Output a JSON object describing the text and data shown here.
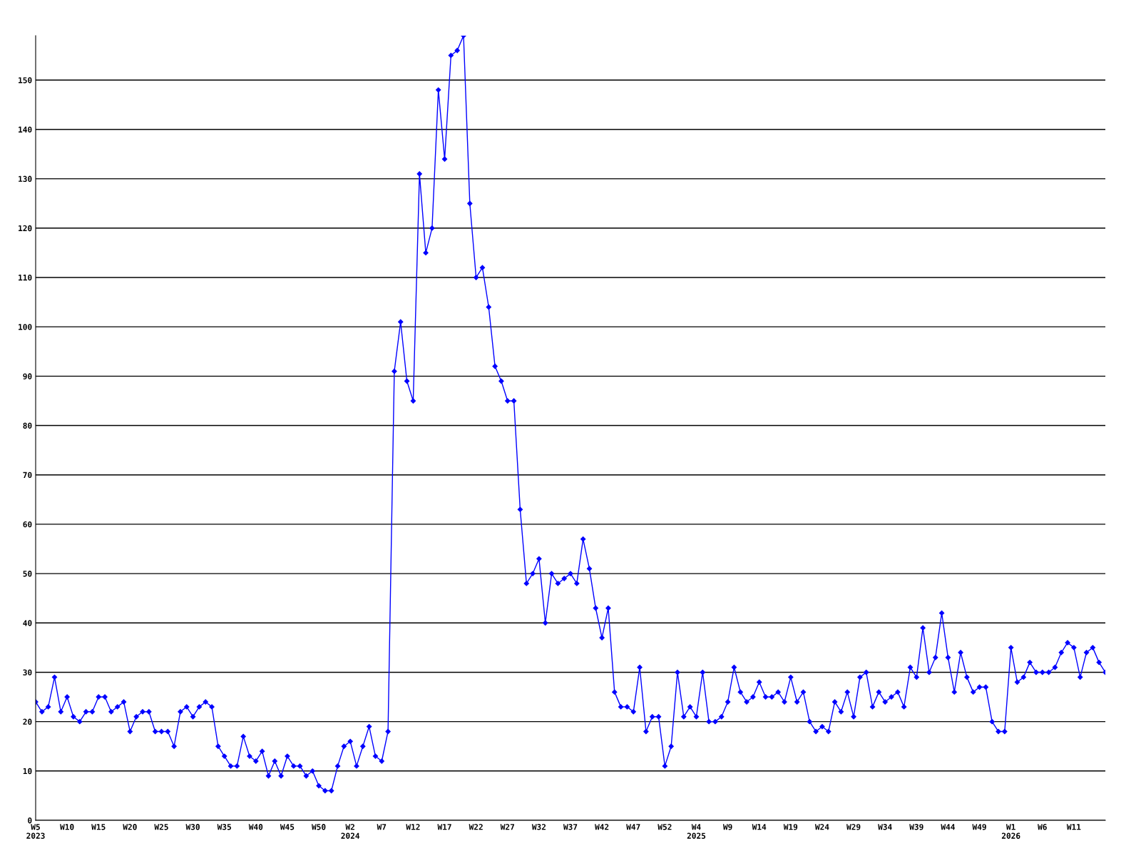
{
  "chart_data": {
    "type": "line",
    "categories": [
      "W5\n2023",
      null,
      null,
      null,
      null,
      "W10",
      null,
      null,
      null,
      null,
      "W15",
      null,
      null,
      null,
      null,
      "W20",
      null,
      null,
      null,
      null,
      "W25",
      null,
      null,
      null,
      null,
      "W30",
      null,
      null,
      null,
      null,
      "W35",
      null,
      null,
      null,
      null,
      "W40",
      null,
      null,
      null,
      null,
      "W45",
      null,
      null,
      null,
      null,
      "W50",
      null,
      null,
      null,
      null,
      "W2\n2024",
      null,
      null,
      null,
      null,
      "W7",
      null,
      null,
      null,
      null,
      "W12",
      null,
      null,
      null,
      null,
      "W17",
      null,
      null,
      null,
      null,
      "W22",
      null,
      null,
      null,
      null,
      "W27",
      null,
      null,
      null,
      null,
      "W32",
      null,
      null,
      null,
      null,
      "W37",
      null,
      null,
      null,
      null,
      "W42",
      null,
      null,
      null,
      null,
      "W47",
      null,
      null,
      null,
      null,
      "W52",
      null,
      null,
      null,
      null,
      "W4\n2025",
      null,
      null,
      null,
      null,
      "W9",
      null,
      null,
      null,
      null,
      "W14",
      null,
      null,
      null,
      null,
      "W19",
      null,
      null,
      null,
      null,
      "W24",
      null,
      null,
      null,
      null,
      "W29",
      null,
      null,
      null,
      null,
      "W34",
      null,
      null,
      null,
      null,
      "W39",
      null,
      null,
      null,
      null,
      "W44",
      null,
      null,
      null,
      null,
      "W49",
      null,
      null,
      null,
      null,
      "W1\n2026",
      null,
      null,
      null,
      null,
      "W6",
      null,
      null,
      null,
      null,
      "W11",
      null,
      null,
      null,
      null,
      null
    ],
    "series": [
      {
        "color": "#0000ff",
        "values": [
          24,
          22,
          23,
          29,
          22,
          25,
          21,
          20,
          22,
          22,
          25,
          25,
          22,
          23,
          24,
          18,
          21,
          22,
          22,
          18,
          18,
          18,
          15,
          22,
          23,
          21,
          23,
          24,
          23,
          15,
          13,
          11,
          11,
          17,
          13,
          12,
          14,
          9,
          12,
          9,
          13,
          11,
          11,
          9,
          10,
          7,
          6,
          6,
          11,
          15,
          16,
          11,
          15,
          19,
          13,
          12,
          18,
          91,
          101,
          89,
          85,
          131,
          115,
          120,
          148,
          134,
          155,
          156,
          159,
          125,
          110,
          112,
          104,
          92,
          89,
          85,
          85,
          63,
          48,
          50,
          53,
          40,
          50,
          48,
          49,
          50,
          48,
          57,
          51,
          43,
          37,
          43,
          26,
          23,
          23,
          22,
          31,
          18,
          21,
          21,
          11,
          15,
          30,
          21,
          23,
          21,
          30,
          20,
          20,
          21,
          24,
          31,
          26,
          24,
          25,
          28,
          25,
          25,
          26,
          24,
          29,
          24,
          26,
          20,
          18,
          19,
          18,
          24,
          22,
          26,
          21,
          29,
          30,
          23,
          26,
          24,
          25,
          26,
          23,
          31,
          29,
          39,
          30,
          33,
          42,
          33,
          26,
          34,
          29,
          26,
          27,
          27,
          20,
          18,
          18,
          35,
          28,
          29,
          32,
          30,
          30,
          30,
          31,
          34,
          36,
          35,
          29,
          34,
          35,
          32,
          30
        ]
      }
    ],
    "ylim": [
      0,
      159
    ],
    "yticks": [
      0,
      10,
      20,
      30,
      40,
      50,
      60,
      70,
      80,
      90,
      100,
      110,
      120,
      130,
      140,
      150
    ],
    "grid": "y",
    "marker": "diamond",
    "line_style": "solid"
  }
}
